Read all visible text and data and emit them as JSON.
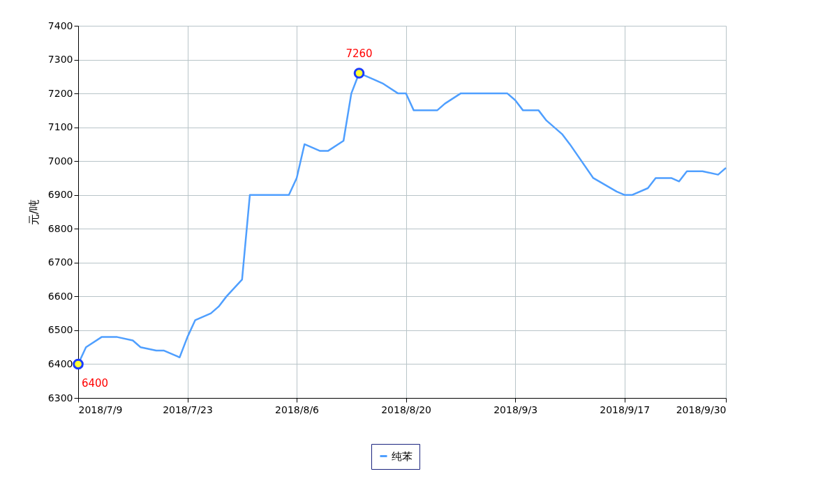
{
  "chart_data": {
    "type": "line",
    "ylabel": "元/吨",
    "x": [
      "2018-07-09",
      "2018-07-10",
      "2018-07-12",
      "2018-07-14",
      "2018-07-16",
      "2018-07-17",
      "2018-07-19",
      "2018-07-20",
      "2018-07-22",
      "2018-07-23",
      "2018-07-24",
      "2018-07-26",
      "2018-07-27",
      "2018-07-28",
      "2018-07-30",
      "2018-07-31",
      "2018-08-05",
      "2018-08-06",
      "2018-08-07",
      "2018-08-09",
      "2018-08-10",
      "2018-08-12",
      "2018-08-13",
      "2018-08-14",
      "2018-08-16",
      "2018-08-17",
      "2018-08-19",
      "2018-08-20",
      "2018-08-21",
      "2018-08-24",
      "2018-08-25",
      "2018-08-27",
      "2018-09-02",
      "2018-09-03",
      "2018-09-04",
      "2018-09-06",
      "2018-09-07",
      "2018-09-09",
      "2018-09-10",
      "2018-09-13",
      "2018-09-16",
      "2018-09-17",
      "2018-09-18",
      "2018-09-20",
      "2018-09-21",
      "2018-09-23",
      "2018-09-24",
      "2018-09-25",
      "2018-09-27",
      "2018-09-29",
      "2018-09-30"
    ],
    "series": [
      {
        "name": "纯苯",
        "color": "#4f9fff",
        "values": [
          6400,
          6450,
          6480,
          6480,
          6470,
          6450,
          6440,
          6440,
          6420,
          6480,
          6530,
          6550,
          6570,
          6600,
          6650,
          6900,
          6900,
          6950,
          7050,
          7030,
          7030,
          7060,
          7200,
          7260,
          7240,
          7230,
          7200,
          7200,
          7150,
          7150,
          7170,
          7200,
          7200,
          7180,
          7150,
          7150,
          7120,
          7080,
          7050,
          6950,
          6910,
          6900,
          6900,
          6920,
          6950,
          6950,
          6940,
          6970,
          6970,
          6960,
          6980
        ]
      }
    ],
    "xlim": [
      "2018-07-09",
      "2018-09-30"
    ],
    "xticks": [
      {
        "value": "2018-07-09",
        "label": "2018/7/9"
      },
      {
        "value": "2018-07-23",
        "label": "2018/7/23"
      },
      {
        "value": "2018-08-06",
        "label": "2018/8/6"
      },
      {
        "value": "2018-08-20",
        "label": "2018/8/20"
      },
      {
        "value": "2018-09-03",
        "label": "2018/9/3"
      },
      {
        "value": "2018-09-17",
        "label": "2018/9/17"
      },
      {
        "value": "2018-09-30",
        "label": "2018/9/30"
      }
    ],
    "ylim": [
      6300,
      7400
    ],
    "yticks": [
      6300,
      6400,
      6500,
      6600,
      6700,
      6800,
      6900,
      7000,
      7100,
      7200,
      7300,
      7400
    ],
    "annotations": [
      {
        "text": "6400",
        "x": "2018-07-09",
        "y": 6400
      },
      {
        "text": "7260",
        "x": "2018-08-14",
        "y": 7260
      }
    ],
    "grid": true,
    "legend": "bottom",
    "marker": "none",
    "line_style": "solid"
  }
}
